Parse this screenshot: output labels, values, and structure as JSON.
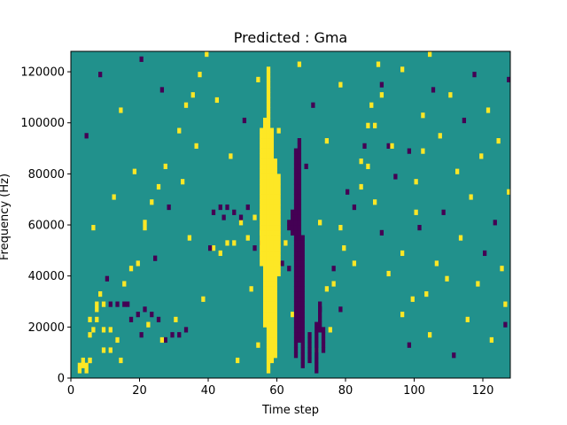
{
  "chart_data": {
    "type": "heatmap",
    "title": "Predicted : Gma",
    "xlabel": "Time step",
    "ylabel": "Frequency (Hz)",
    "xlim": [
      0,
      128
    ],
    "ylim": [
      0,
      128000
    ],
    "x_ticks": [
      0,
      20,
      40,
      60,
      80,
      100,
      120
    ],
    "y_ticks": [
      0,
      20000,
      40000,
      60000,
      80000,
      100000,
      120000
    ],
    "grid": false,
    "rows": 64,
    "cols": 128,
    "colors": {
      "background": "#21918c",
      "high": "#fde725",
      "low": "#440154"
    },
    "cells": [
      [
        1,
        2,
        1,
        "high"
      ],
      [
        1,
        3,
        1,
        "high"
      ],
      [
        2,
        3,
        1,
        "high"
      ],
      [
        2,
        3,
        0,
        "high"
      ],
      [
        2,
        8,
        1,
        "high"
      ],
      [
        3,
        13,
        1,
        "high"
      ],
      [
        3,
        14,
        1,
        "high"
      ],
      [
        4,
        14,
        1,
        "high"
      ],
      [
        2,
        11,
        1,
        "high"
      ],
      [
        3,
        11,
        1,
        "high"
      ],
      [
        4,
        9,
        1,
        "high"
      ],
      [
        5,
        9,
        1,
        "high"
      ],
      [
        4,
        5,
        1,
        "high"
      ],
      [
        5,
        5,
        1,
        "high"
      ],
      [
        6,
        7,
        1,
        "high"
      ],
      [
        7,
        18,
        1,
        "high"
      ],
      [
        8,
        21,
        1,
        "high"
      ],
      [
        9,
        22,
        1,
        "high"
      ],
      [
        10,
        29,
        1,
        "high"
      ],
      [
        10,
        30,
        1,
        "high"
      ],
      [
        11,
        34,
        1,
        "high"
      ],
      [
        12,
        37,
        1,
        "high"
      ],
      [
        13,
        41,
        1,
        "high"
      ],
      [
        15,
        48,
        1,
        "high"
      ],
      [
        16,
        53,
        1,
        "high"
      ],
      [
        17,
        55,
        1,
        "high"
      ],
      [
        18,
        59,
        1,
        "high"
      ],
      [
        19,
        63,
        1,
        "high"
      ],
      [
        5,
        14,
        0,
        "low"
      ],
      [
        6,
        14,
        0,
        "low"
      ],
      [
        7,
        14,
        0,
        "low"
      ],
      [
        8,
        11,
        0,
        "low"
      ],
      [
        9,
        12,
        0,
        "low"
      ],
      [
        10,
        13,
        0,
        "low"
      ],
      [
        11,
        12,
        0,
        "low"
      ],
      [
        12,
        11,
        0,
        "low"
      ],
      [
        13,
        7,
        0,
        "low"
      ],
      [
        14,
        8,
        0,
        "low"
      ],
      [
        15,
        8,
        0,
        "low"
      ],
      [
        16,
        9,
        0,
        "low"
      ],
      [
        20,
        25,
        1,
        "high"
      ],
      [
        21,
        24,
        1,
        "high"
      ],
      [
        22,
        26,
        1,
        "high"
      ],
      [
        23,
        26,
        1,
        "high"
      ],
      [
        24,
        30,
        1,
        "high"
      ],
      [
        25,
        27,
        1,
        "high"
      ],
      [
        26,
        31,
        1,
        "high"
      ],
      [
        27,
        28,
        1,
        "high"
      ],
      [
        20,
        32,
        0,
        "low"
      ],
      [
        21,
        33,
        0,
        "low"
      ],
      [
        22,
        33,
        0,
        "low"
      ],
      [
        23,
        32,
        0,
        "low"
      ],
      [
        24,
        31,
        0,
        "low"
      ],
      [
        25,
        33,
        0,
        "low"
      ],
      [
        26,
        25,
        0,
        "low"
      ],
      [
        27,
        26,
        0,
        "low"
      ],
      [
        28,
        24,
        0,
        "low"
      ],
      [
        29,
        23,
        0,
        "low"
      ],
      [
        30,
        22,
        0,
        "low"
      ],
      [
        31,
        21,
        0,
        "low"
      ]
    ],
    "bands": [
      {
        "t": 55,
        "y0": 22,
        "y1": 48,
        "level": "high"
      },
      {
        "t": 56,
        "y0": 10,
        "y1": 50,
        "level": "high"
      },
      {
        "t": 57,
        "y0": 1,
        "y1": 60,
        "level": "high"
      },
      {
        "t": 58,
        "y0": 3,
        "y1": 48,
        "level": "high"
      },
      {
        "t": 59,
        "y0": 4,
        "y1": 42,
        "level": "high"
      },
      {
        "t": 60,
        "y0": 20,
        "y1": 39,
        "level": "high"
      },
      {
        "t": 63,
        "y0": 29,
        "y1": 30,
        "level": "low"
      },
      {
        "t": 64,
        "y0": 28,
        "y1": 32,
        "level": "low"
      },
      {
        "t": 65,
        "y0": 4,
        "y1": 44,
        "level": "low"
      },
      {
        "t": 66,
        "y0": 7,
        "y1": 46,
        "level": "low"
      },
      {
        "t": 67,
        "y0": 2,
        "y1": 27,
        "level": "low"
      },
      {
        "t": 69,
        "y0": 3,
        "y1": 8,
        "level": "low"
      },
      {
        "t": 71,
        "y0": 1,
        "y1": 10,
        "level": "low"
      },
      {
        "t": 72,
        "y0": 9,
        "y1": 14,
        "level": "low"
      },
      {
        "t": 73,
        "y0": 5,
        "y1": 9,
        "level": "low"
      }
    ],
    "extra_cells": [
      [
        0,
        1,
        17,
        "high"
      ],
      [
        1,
        1,
        17,
        "high"
      ],
      [
        0,
        2,
        17,
        "high"
      ],
      [
        1,
        2,
        17,
        "high"
      ],
      [
        6,
        3,
        1,
        "high"
      ],
      [
        23,
        3,
        1,
        "high"
      ],
      [
        26,
        6,
        1,
        "high"
      ],
      [
        12,
        7,
        1,
        "high"
      ],
      [
        9,
        8,
        1,
        "low"
      ],
      [
        2,
        9,
        1,
        "high"
      ],
      [
        10,
        10,
        1,
        "high"
      ],
      [
        14,
        11,
        1,
        "high"
      ],
      [
        31,
        12,
        1,
        "high"
      ],
      [
        38,
        13,
        1,
        "low"
      ],
      [
        7,
        14,
        1,
        "low"
      ],
      [
        18,
        15,
        1,
        "high"
      ],
      [
        3,
        16,
        1,
        "high"
      ],
      [
        25,
        17,
        1,
        "high"
      ],
      [
        37,
        18,
        1,
        "high"
      ],
      [
        4,
        19,
        1,
        "low"
      ],
      [
        45,
        20,
        1,
        "high"
      ],
      [
        27,
        21,
        1,
        "low"
      ],
      [
        40,
        22,
        1,
        "high"
      ],
      [
        11,
        23,
        1,
        "low"
      ],
      [
        47,
        24,
        1,
        "high"
      ],
      [
        19,
        25,
        1,
        "low"
      ],
      [
        30,
        26,
        1,
        "high"
      ],
      [
        16,
        27,
        1,
        "high"
      ],
      [
        44,
        28,
        1,
        "low"
      ],
      [
        2,
        29,
        1,
        "high"
      ],
      [
        35,
        30,
        1,
        "high"
      ],
      [
        21,
        31,
        1,
        "low"
      ],
      [
        49,
        32,
        1,
        "high"
      ],
      [
        13,
        33,
        1,
        "low"
      ],
      [
        43,
        34,
        1,
        "high"
      ],
      [
        5,
        35,
        1,
        "high"
      ],
      [
        39,
        36,
        1,
        "low"
      ],
      [
        28,
        37,
        1,
        "high"
      ],
      [
        15,
        38,
        1,
        "high"
      ],
      [
        46,
        39,
        1,
        "low"
      ],
      [
        8,
        40,
        1,
        "high"
      ],
      [
        33,
        41,
        1,
        "low"
      ],
      [
        41,
        42,
        1,
        "high"
      ],
      [
        22,
        43,
        1,
        "high"
      ],
      [
        48,
        44,
        1,
        "low"
      ],
      [
        17,
        45,
        1,
        "high"
      ],
      [
        36,
        46,
        1,
        "high"
      ],
      [
        1,
        47,
        1,
        "low"
      ],
      [
        29,
        48,
        1,
        "high"
      ],
      [
        42,
        49,
        1,
        "high"
      ],
      [
        24,
        50,
        1,
        "low"
      ],
      [
        50,
        51,
        1,
        "high"
      ],
      [
        6,
        52,
        1,
        "high"
      ],
      [
        34,
        53,
        1,
        "low"
      ],
      [
        20,
        54,
        1,
        "high"
      ],
      [
        44,
        55,
        1,
        "high"
      ],
      [
        12,
        56,
        1,
        "low"
      ],
      [
        38,
        57,
        1,
        "high"
      ],
      [
        26,
        58,
        1,
        "high"
      ],
      [
        3,
        59,
        1,
        "low"
      ],
      [
        47,
        60,
        1,
        "high"
      ],
      [
        32,
        61,
        1,
        "high"
      ],
      [
        9,
        62,
        1,
        "low"
      ],
      [
        51,
        63,
        1,
        "high"
      ]
    ],
    "scatter_cells": [
      [
        5,
        71,
        "high"
      ],
      [
        9,
        75,
        "high"
      ],
      [
        13,
        72,
        "low"
      ],
      [
        17,
        74,
        "high"
      ],
      [
        21,
        76,
        "low"
      ],
      [
        25,
        79,
        "high"
      ],
      [
        29,
        78,
        "high"
      ],
      [
        33,
        82,
        "low"
      ],
      [
        37,
        84,
        "high"
      ],
      [
        41,
        86,
        "high"
      ],
      [
        45,
        85,
        "low"
      ],
      [
        49,
        88,
        "high"
      ],
      [
        53,
        87,
        "high"
      ],
      [
        57,
        90,
        "low"
      ],
      [
        61,
        89,
        "high"
      ],
      [
        45,
        92,
        "low"
      ],
      [
        45,
        93,
        "high"
      ],
      [
        12,
        96,
        "high"
      ],
      [
        6,
        98,
        "low"
      ],
      [
        15,
        99,
        "high"
      ],
      [
        38,
        100,
        "high"
      ],
      [
        29,
        101,
        "low"
      ],
      [
        44,
        102,
        "high"
      ],
      [
        16,
        103,
        "high"
      ],
      [
        8,
        104,
        "high"
      ],
      [
        56,
        105,
        "low"
      ],
      [
        22,
        106,
        "high"
      ],
      [
        47,
        107,
        "high"
      ],
      [
        32,
        108,
        "low"
      ],
      [
        19,
        109,
        "high"
      ],
      [
        55,
        110,
        "high"
      ],
      [
        4,
        111,
        "low"
      ],
      [
        40,
        112,
        "high"
      ],
      [
        27,
        113,
        "high"
      ],
      [
        50,
        114,
        "low"
      ],
      [
        11,
        115,
        "high"
      ],
      [
        35,
        116,
        "high"
      ],
      [
        59,
        117,
        "low"
      ],
      [
        18,
        118,
        "high"
      ],
      [
        43,
        119,
        "high"
      ],
      [
        24,
        120,
        "low"
      ],
      [
        52,
        121,
        "high"
      ],
      [
        7,
        122,
        "high"
      ],
      [
        30,
        123,
        "low"
      ],
      [
        46,
        124,
        "high"
      ],
      [
        21,
        125,
        "high"
      ],
      [
        14,
        126,
        "high"
      ],
      [
        58,
        127,
        "low"
      ],
      [
        36,
        127,
        "high"
      ],
      [
        10,
        126,
        "low"
      ]
    ]
  }
}
